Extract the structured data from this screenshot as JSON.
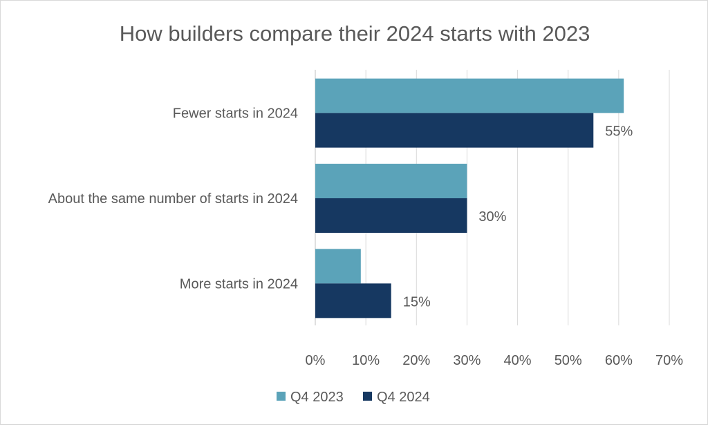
{
  "chart_data": {
    "type": "bar",
    "orientation": "horizontal",
    "title": "How builders compare their 2024 starts with 2023",
    "categories": [
      "Fewer starts in 2024",
      "About the same number of starts in 2024",
      "More starts in 2024"
    ],
    "series": [
      {
        "name": "Q4 2023",
        "color": "#5BA3B9",
        "values": [
          61,
          30,
          9
        ]
      },
      {
        "name": "Q4 2024",
        "color": "#163861",
        "values": [
          55,
          30,
          15
        ],
        "data_labels": [
          "55%",
          "30%",
          "15%"
        ]
      }
    ],
    "xlim": [
      0,
      70
    ],
    "x_ticks": [
      "0%",
      "10%",
      "20%",
      "30%",
      "40%",
      "50%",
      "60%",
      "70%"
    ],
    "grid": "vertical",
    "legend": "bottom"
  }
}
